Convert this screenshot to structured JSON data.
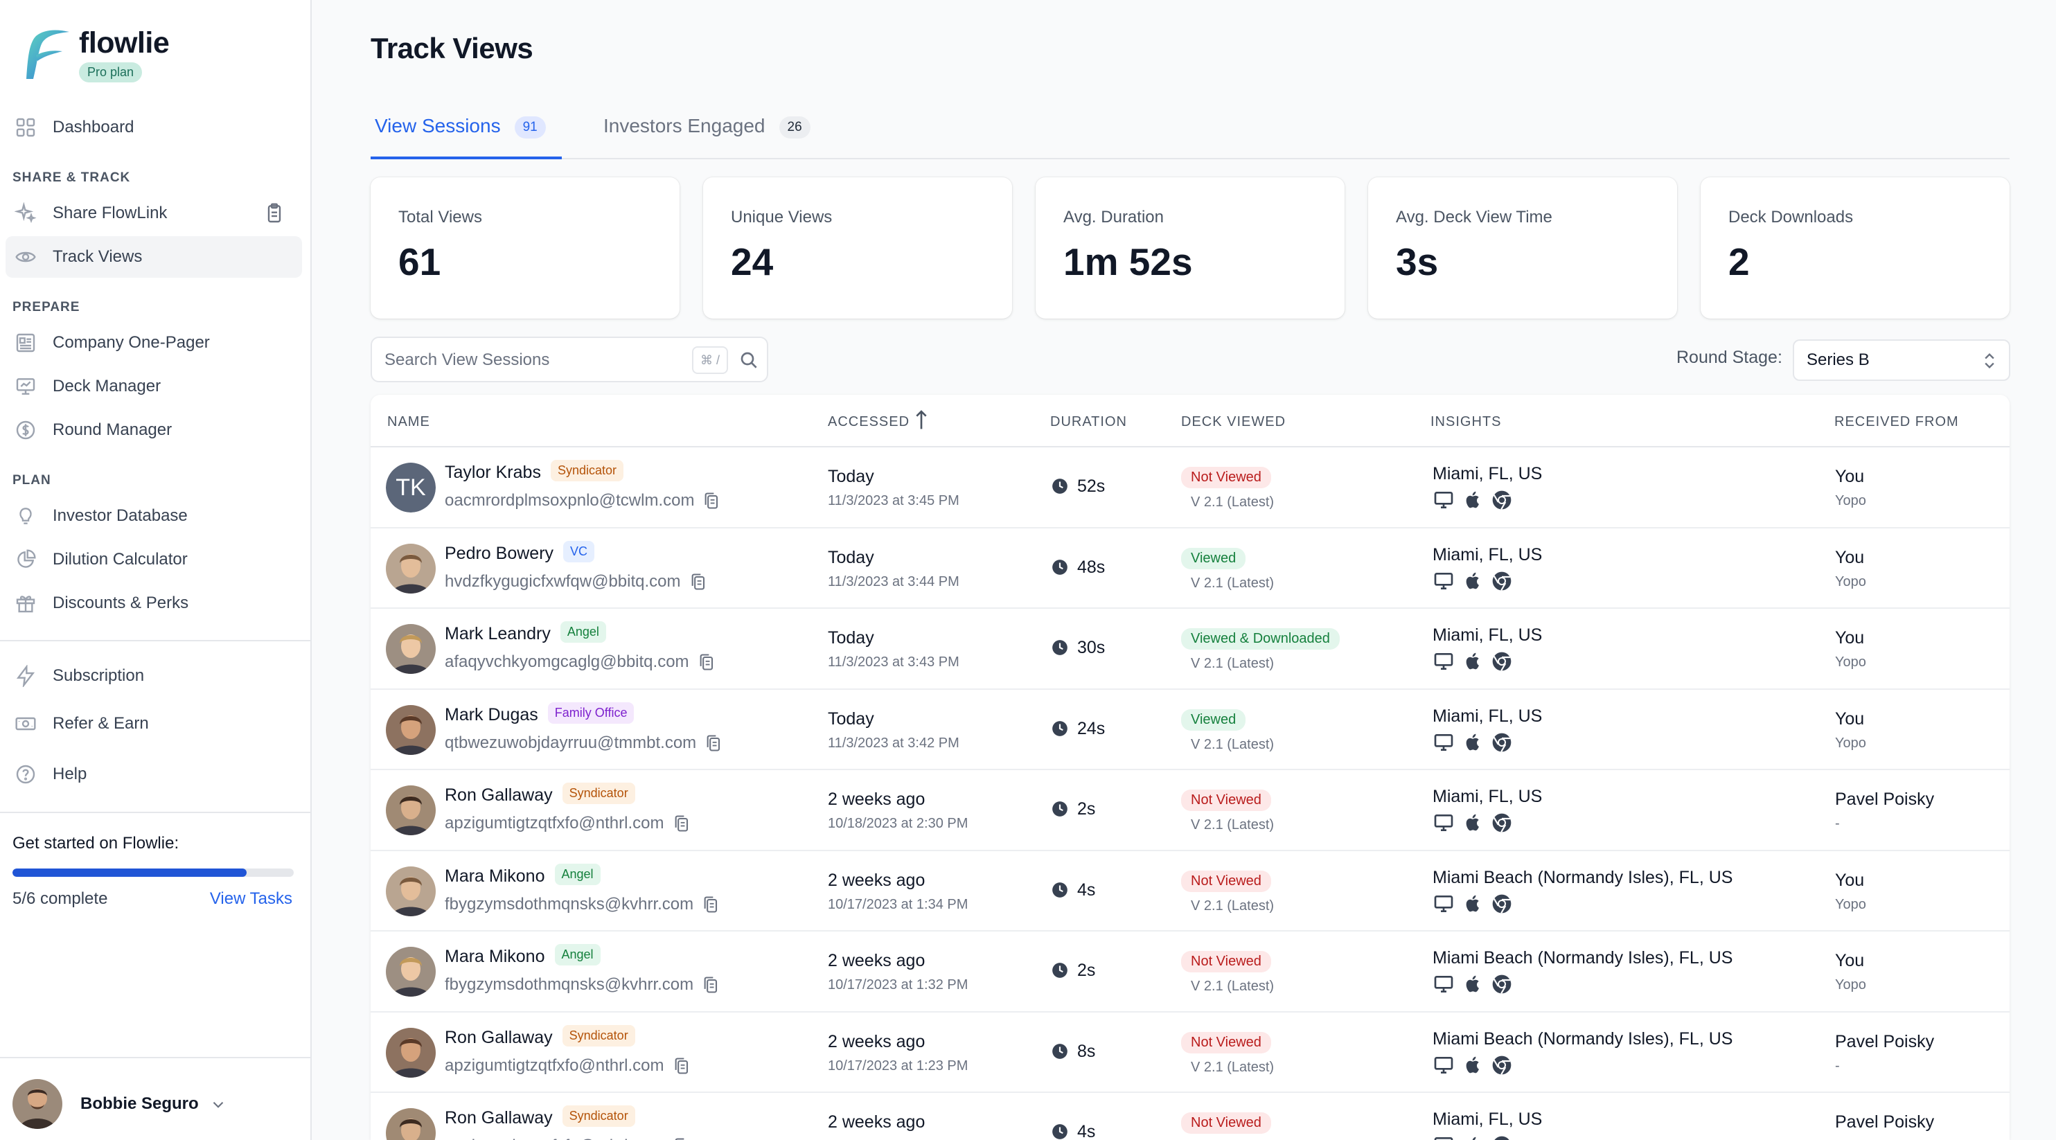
{
  "brand": {
    "name": "flowlie",
    "plan": "Pro plan"
  },
  "sidebar": {
    "dashboard": "Dashboard",
    "section_share": "SHARE & TRACK",
    "share_flowlink": "Share FlowLink",
    "track_views": "Track Views",
    "section_prepare": "PREPARE",
    "one_pager": "Company One-Pager",
    "deck_manager": "Deck Manager",
    "round_manager": "Round Manager",
    "section_plan": "PLAN",
    "investor_database": "Investor Database",
    "dilution_calculator": "Dilution Calculator",
    "discounts": "Discounts & Perks",
    "subscription": "Subscription",
    "refer": "Refer & Earn",
    "help": "Help",
    "progress": {
      "title": "Get started on Flowlie:",
      "count": "5/6 complete",
      "value": 0.833,
      "link": "View Tasks"
    },
    "user": {
      "name": "Bobbie Seguro"
    }
  },
  "page": {
    "title": "Track Views"
  },
  "tabs": [
    {
      "label": "View Sessions",
      "count": "91"
    },
    {
      "label": "Investors Engaged",
      "count": "26"
    }
  ],
  "stats": [
    {
      "label": "Total Views",
      "value": "61"
    },
    {
      "label": "Unique Views",
      "value": "24"
    },
    {
      "label": "Avg. Duration",
      "value": "1m 52s"
    },
    {
      "label": "Avg. Deck View Time",
      "value": "3s"
    },
    {
      "label": "Deck Downloads",
      "value": "2"
    }
  ],
  "search": {
    "placeholder": "Search View Sessions",
    "shortcut": "⌘ /"
  },
  "round": {
    "label": "Round Stage:",
    "value": "Series B"
  },
  "table": {
    "columns": {
      "name": "NAME",
      "accessed": "ACCESSED",
      "duration": "DURATION",
      "deck": "DECK VIEWED",
      "insights": "INSIGHTS",
      "received": "RECEIVED FROM"
    },
    "rows": [
      {
        "name": "Taylor Krabs",
        "initials": "TK",
        "type": "Syndicator",
        "email": "oacmrordplmsoxpnlo@tcwlm.com",
        "accessed": "Today",
        "accessed_at": "11/3/2023 at 3:45 PM",
        "duration": "52s",
        "deck": "Not Viewed",
        "version": "V 2.1 (Latest)",
        "location": "Miami, FL, US",
        "received": "You",
        "received_sub": "Yopo"
      },
      {
        "name": "Pedro Bowery",
        "type": "VC",
        "email": "hvdzfkygugicfxwfqw@bbitq.com",
        "accessed": "Today",
        "accessed_at": "11/3/2023 at 3:44 PM",
        "duration": "48s",
        "deck": "Viewed",
        "version": "V 2.1 (Latest)",
        "location": "Miami, FL, US",
        "received": "You",
        "received_sub": "Yopo"
      },
      {
        "name": "Mark Leandry",
        "type": "Angel",
        "email": "afaqyvchkyomgcaglg@bbitq.com",
        "accessed": "Today",
        "accessed_at": "11/3/2023 at 3:43 PM",
        "duration": "30s",
        "deck": "Viewed & Downloaded",
        "version": "V 2.1 (Latest)",
        "location": "Miami, FL, US",
        "received": "You",
        "received_sub": "Yopo"
      },
      {
        "name": "Mark Dugas",
        "type": "Family Office",
        "email": "qtbwezuwobjdayrruu@tmmbt.com",
        "accessed": "Today",
        "accessed_at": "11/3/2023 at 3:42 PM",
        "duration": "24s",
        "deck": "Viewed",
        "version": "V 2.1 (Latest)",
        "location": "Miami, FL, US",
        "received": "You",
        "received_sub": "Yopo"
      },
      {
        "name": "Ron Gallaway",
        "type": "Syndicator",
        "email": "apzigumtigtzqtfxfo@nthrl.com",
        "accessed": "2 weeks ago",
        "accessed_at": "10/18/2023 at 2:30 PM",
        "duration": "2s",
        "deck": "Not Viewed",
        "version": "V 2.1 (Latest)",
        "location": "Miami, FL, US",
        "received": "Pavel Poisky",
        "received_sub": "-"
      },
      {
        "name": "Mara Mikono",
        "type": "Angel",
        "email": "fbygzymsdothmqnsks@kvhrr.com",
        "accessed": "2 weeks ago",
        "accessed_at": "10/17/2023 at 1:34 PM",
        "duration": "4s",
        "deck": "Not Viewed",
        "version": "V 2.1 (Latest)",
        "location": "Miami Beach (Normandy Isles), FL, US",
        "received": "You",
        "received_sub": "Yopo"
      },
      {
        "name": "Mara Mikono",
        "type": "Angel",
        "email": "fbygzymsdothmqnsks@kvhrr.com",
        "accessed": "2 weeks ago",
        "accessed_at": "10/17/2023 at 1:32 PM",
        "duration": "2s",
        "deck": "Not Viewed",
        "version": "V 2.1 (Latest)",
        "location": "Miami Beach (Normandy Isles), FL, US",
        "received": "You",
        "received_sub": "Yopo"
      },
      {
        "name": "Ron Gallaway",
        "type": "Syndicator",
        "email": "apzigumtigtzqtfxfo@nthrl.com",
        "accessed": "2 weeks ago",
        "accessed_at": "10/17/2023 at 1:23 PM",
        "duration": "8s",
        "deck": "Not Viewed",
        "version": "V 2.1 (Latest)",
        "location": "Miami Beach (Normandy Isles), FL, US",
        "received": "Pavel Poisky",
        "received_sub": "-"
      },
      {
        "name": "Ron Gallaway",
        "type": "Syndicator",
        "email": "apzigumtigtzqtfxfo@nthrl.com",
        "accessed": "2 weeks ago",
        "accessed_at": "",
        "duration": "4s",
        "deck": "Not Viewed",
        "version": "",
        "location": "Miami, FL, US",
        "received": "Pavel Poisky",
        "received_sub": ""
      }
    ]
  },
  "colors": {
    "accent": "#2563eb",
    "badge_syndicator": "#fdf0e1",
    "badge_vc": "#e6efff",
    "badge_angel": "#e3f6ec",
    "badge_family_office": "#f4e8fd",
    "not_viewed": "#fde8e8",
    "viewed": "#e3f6ec"
  }
}
